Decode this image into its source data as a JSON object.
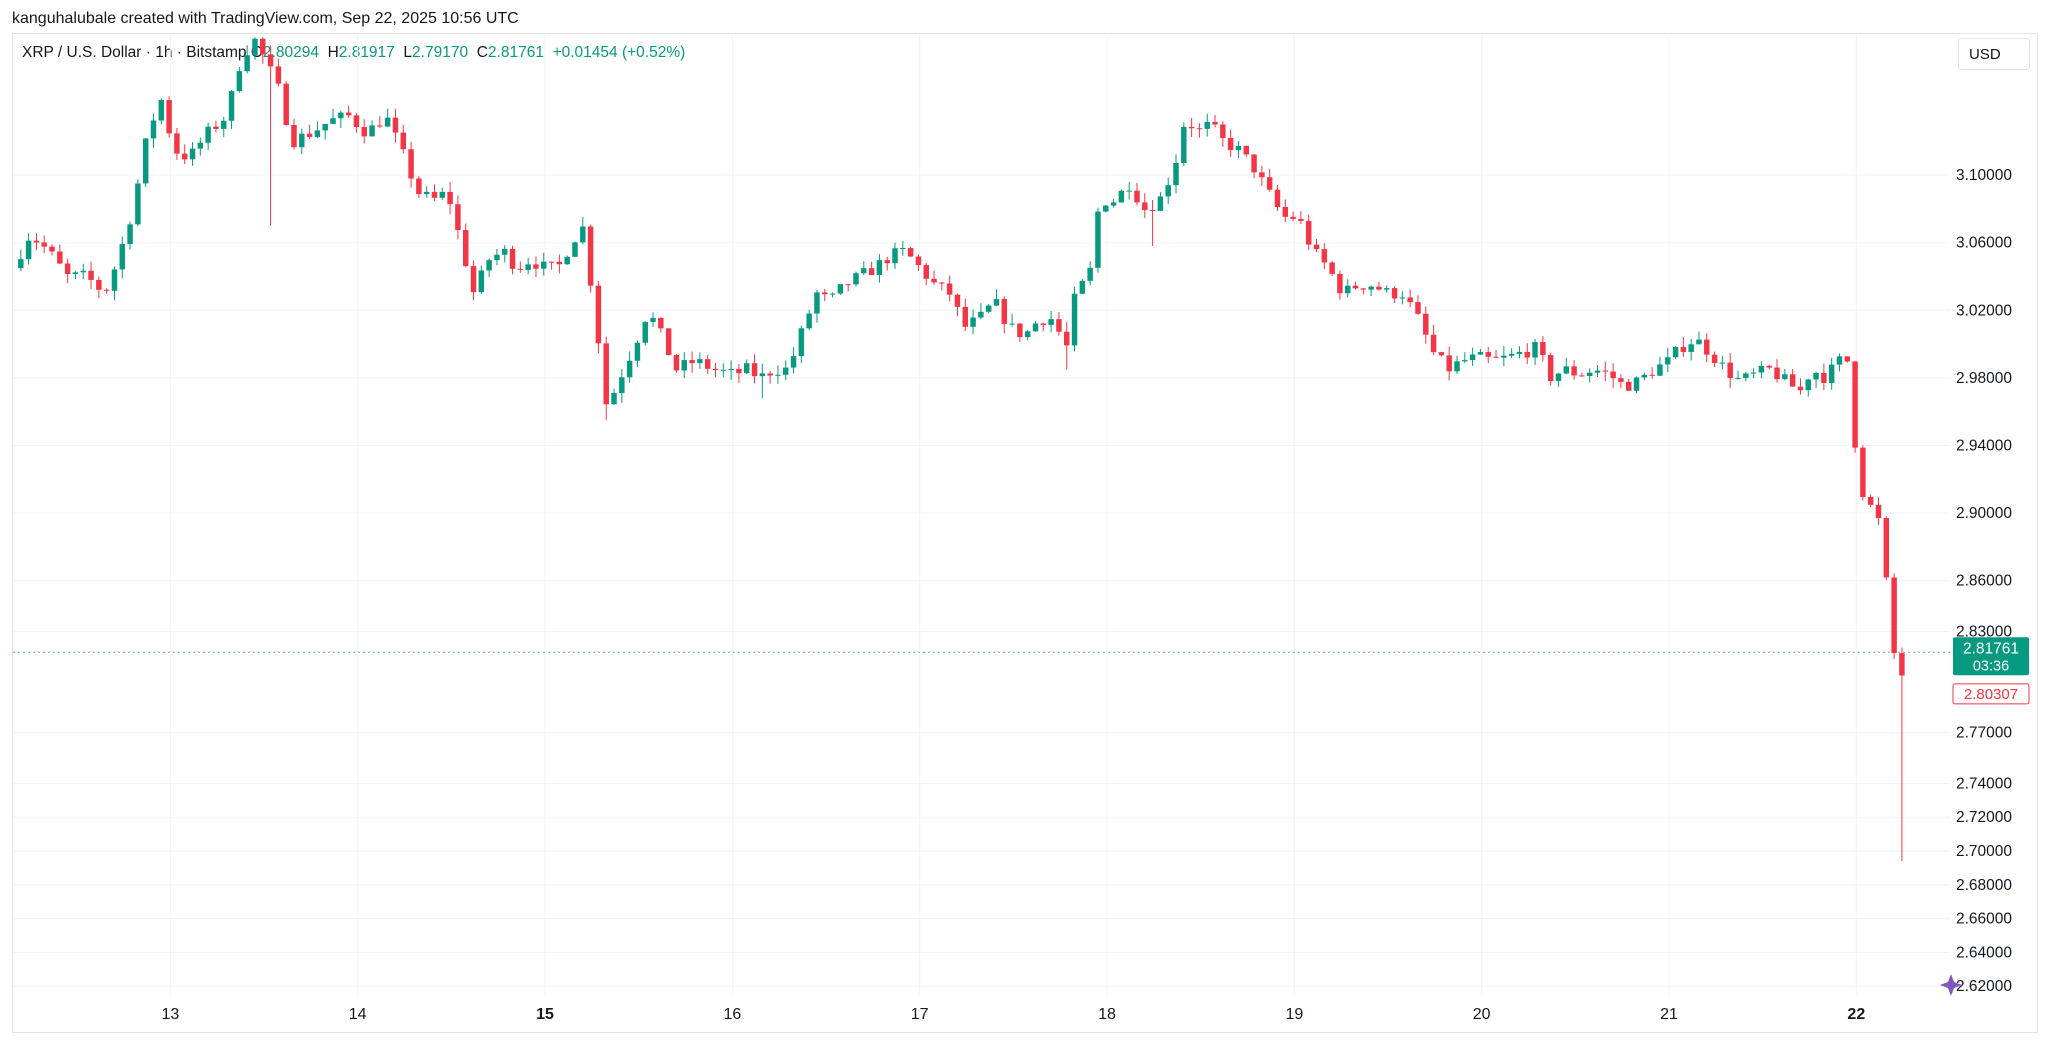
{
  "header": {
    "credit": "kanguhalubale created with TradingView.com, Sep 22, 2025 10:56 UTC"
  },
  "legend": {
    "symbol": "XRP / U.S. Dollar · 1h · Bitstamp",
    "open_label": "O",
    "open_value": "2.80294",
    "high_label": "H",
    "high_value": "2.81917",
    "low_label": "L",
    "low_value": "2.79170",
    "close_label": "C",
    "close_value": "2.81761",
    "change": "+0.01454 (+0.52%)"
  },
  "toolbar": {
    "currency": "USD"
  },
  "price_tags": {
    "last_price": "2.81761",
    "countdown": "03:36",
    "bid_price": "2.80307"
  },
  "colors": {
    "up": "#089981",
    "down": "#f23645",
    "grid": "#f0f3fa",
    "last_price_line": "#089981"
  },
  "chart_data": {
    "type": "candlestick",
    "symbol": "XRP / U.S. Dollar",
    "interval": "1h",
    "exchange": "Bitstamp",
    "yaxis": {
      "ticks": [
        "2.62000",
        "2.64000",
        "2.66000",
        "2.68000",
        "2.70000",
        "2.72000",
        "2.74000",
        "2.77000",
        "2.83000",
        "2.86000",
        "2.90000",
        "2.94000",
        "2.98000",
        "3.02000",
        "3.06000",
        "3.10000"
      ],
      "range": [
        2.6148,
        3.1835
      ]
    },
    "xaxis": {
      "start_day": 12.16,
      "end_day": 22.5,
      "ticks": [
        {
          "label": "13",
          "day": 13,
          "bold": false
        },
        {
          "label": "14",
          "day": 14,
          "bold": false
        },
        {
          "label": "15",
          "day": 15,
          "bold": true
        },
        {
          "label": "16",
          "day": 16,
          "bold": false
        },
        {
          "label": "17",
          "day": 17,
          "bold": false
        },
        {
          "label": "18",
          "day": 18,
          "bold": false
        },
        {
          "label": "19",
          "day": 19,
          "bold": false
        },
        {
          "label": "20",
          "day": 20,
          "bold": false
        },
        {
          "label": "21",
          "day": 21,
          "bold": false
        },
        {
          "label": "22",
          "day": 22,
          "bold": true
        }
      ]
    },
    "last_price": 2.81761,
    "bid_price": 2.80307,
    "close_path": [
      {
        "day": 12.16,
        "close": 3.045
      },
      {
        "day": 12.25,
        "close": 3.065
      },
      {
        "day": 12.35,
        "close": 3.055
      },
      {
        "day": 12.45,
        "close": 3.04
      },
      {
        "day": 12.55,
        "close": 3.04
      },
      {
        "day": 12.65,
        "close": 3.03
      },
      {
        "day": 12.72,
        "close": 3.05
      },
      {
        "day": 12.8,
        "close": 3.08
      },
      {
        "day": 12.88,
        "close": 3.125
      },
      {
        "day": 12.95,
        "close": 3.145
      },
      {
        "day": 13.02,
        "close": 3.115
      },
      {
        "day": 13.1,
        "close": 3.11
      },
      {
        "day": 13.2,
        "close": 3.125
      },
      {
        "day": 13.3,
        "close": 3.135
      },
      {
        "day": 13.38,
        "close": 3.17
      },
      {
        "day": 13.45,
        "close": 3.18
      },
      {
        "day": 13.52,
        "close": 3.165
      },
      {
        "day": 13.58,
        "close": 3.15
      },
      {
        "day": 13.65,
        "close": 3.12
      },
      {
        "day": 13.75,
        "close": 3.125
      },
      {
        "day": 13.85,
        "close": 3.132
      },
      {
        "day": 13.95,
        "close": 3.135
      },
      {
        "day": 14.05,
        "close": 3.125
      },
      {
        "day": 14.15,
        "close": 3.135
      },
      {
        "day": 14.25,
        "close": 3.11
      },
      {
        "day": 14.32,
        "close": 3.09
      },
      {
        "day": 14.4,
        "close": 3.085
      },
      {
        "day": 14.48,
        "close": 3.09
      },
      {
        "day": 14.55,
        "close": 3.06
      },
      {
        "day": 14.62,
        "close": 3.03
      },
      {
        "day": 14.7,
        "close": 3.05
      },
      {
        "day": 14.78,
        "close": 3.055
      },
      {
        "day": 14.85,
        "close": 3.045
      },
      {
        "day": 14.92,
        "close": 3.05
      },
      {
        "day": 15.0,
        "close": 3.045
      },
      {
        "day": 15.07,
        "close": 3.045
      },
      {
        "day": 15.14,
        "close": 3.06
      },
      {
        "day": 15.2,
        "close": 3.07
      },
      {
        "day": 15.26,
        "close": 3.025
      },
      {
        "day": 15.33,
        "close": 2.962
      },
      {
        "day": 15.4,
        "close": 2.98
      },
      {
        "day": 15.48,
        "close": 3.0
      },
      {
        "day": 15.55,
        "close": 3.02
      },
      {
        "day": 15.62,
        "close": 3.005
      },
      {
        "day": 15.7,
        "close": 2.985
      },
      {
        "day": 15.8,
        "close": 2.99
      },
      {
        "day": 15.9,
        "close": 2.985
      },
      {
        "day": 16.0,
        "close": 2.982
      },
      {
        "day": 16.08,
        "close": 2.985
      },
      {
        "day": 16.15,
        "close": 2.98
      },
      {
        "day": 16.22,
        "close": 2.985
      },
      {
        "day": 16.3,
        "close": 2.985
      },
      {
        "day": 16.38,
        "close": 3.01
      },
      {
        "day": 16.45,
        "close": 3.03
      },
      {
        "day": 16.52,
        "close": 3.025
      },
      {
        "day": 16.6,
        "close": 3.035
      },
      {
        "day": 16.68,
        "close": 3.04
      },
      {
        "day": 16.76,
        "close": 3.045
      },
      {
        "day": 16.84,
        "close": 3.052
      },
      {
        "day": 16.92,
        "close": 3.055
      },
      {
        "day": 17.0,
        "close": 3.045
      },
      {
        "day": 17.08,
        "close": 3.035
      },
      {
        "day": 17.16,
        "close": 3.03
      },
      {
        "day": 17.24,
        "close": 3.01
      },
      {
        "day": 17.32,
        "close": 3.015
      },
      {
        "day": 17.4,
        "close": 3.025
      },
      {
        "day": 17.48,
        "close": 3.01
      },
      {
        "day": 17.56,
        "close": 3.005
      },
      {
        "day": 17.64,
        "close": 3.015
      },
      {
        "day": 17.72,
        "close": 3.015
      },
      {
        "day": 17.78,
        "close": 2.995
      },
      {
        "day": 17.84,
        "close": 3.035
      },
      {
        "day": 17.9,
        "close": 3.035
      },
      {
        "day": 17.96,
        "close": 3.085
      },
      {
        "day": 18.04,
        "close": 3.085
      },
      {
        "day": 18.12,
        "close": 3.095
      },
      {
        "day": 18.2,
        "close": 3.08
      },
      {
        "day": 18.28,
        "close": 3.085
      },
      {
        "day": 18.36,
        "close": 3.105
      },
      {
        "day": 18.42,
        "close": 3.135
      },
      {
        "day": 18.48,
        "close": 3.125
      },
      {
        "day": 18.55,
        "close": 3.13
      },
      {
        "day": 18.62,
        "close": 3.12
      },
      {
        "day": 18.7,
        "close": 3.115
      },
      {
        "day": 18.78,
        "close": 3.105
      },
      {
        "day": 18.86,
        "close": 3.09
      },
      {
        "day": 18.94,
        "close": 3.075
      },
      {
        "day": 19.02,
        "close": 3.075
      },
      {
        "day": 19.1,
        "close": 3.055
      },
      {
        "day": 19.18,
        "close": 3.045
      },
      {
        "day": 19.26,
        "close": 3.03
      },
      {
        "day": 19.34,
        "close": 3.035
      },
      {
        "day": 19.42,
        "close": 3.035
      },
      {
        "day": 19.5,
        "close": 3.03
      },
      {
        "day": 19.58,
        "close": 3.03
      },
      {
        "day": 19.66,
        "close": 3.015
      },
      {
        "day": 19.74,
        "close": 2.995
      },
      {
        "day": 19.82,
        "close": 2.985
      },
      {
        "day": 19.9,
        "close": 2.99
      },
      {
        "day": 19.98,
        "close": 2.992
      },
      {
        "day": 20.06,
        "close": 2.99
      },
      {
        "day": 20.14,
        "close": 2.992
      },
      {
        "day": 20.22,
        "close": 2.995
      },
      {
        "day": 20.3,
        "close": 2.998
      },
      {
        "day": 20.36,
        "close": 2.98
      },
      {
        "day": 20.44,
        "close": 2.985
      },
      {
        "day": 20.52,
        "close": 2.982
      },
      {
        "day": 20.6,
        "close": 2.985
      },
      {
        "day": 20.68,
        "close": 2.982
      },
      {
        "day": 20.76,
        "close": 2.975
      },
      {
        "day": 20.84,
        "close": 2.978
      },
      {
        "day": 20.92,
        "close": 2.985
      },
      {
        "day": 21.0,
        "close": 2.99
      },
      {
        "day": 21.06,
        "close": 2.998
      },
      {
        "day": 21.14,
        "close": 3.003
      },
      {
        "day": 21.22,
        "close": 2.995
      },
      {
        "day": 21.3,
        "close": 2.985
      },
      {
        "day": 21.38,
        "close": 2.978
      },
      {
        "day": 21.46,
        "close": 2.982
      },
      {
        "day": 21.54,
        "close": 2.985
      },
      {
        "day": 21.62,
        "close": 2.978
      },
      {
        "day": 21.7,
        "close": 2.972
      },
      {
        "day": 21.76,
        "close": 2.985
      },
      {
        "day": 21.84,
        "close": 2.98
      },
      {
        "day": 21.9,
        "close": 2.99
      },
      {
        "day": 21.96,
        "close": 2.99
      },
      {
        "day": 22.01,
        "close": 2.918
      },
      {
        "day": 22.07,
        "close": 2.905
      },
      {
        "day": 22.12,
        "close": 2.895
      },
      {
        "day": 22.17,
        "close": 2.85
      },
      {
        "day": 22.21,
        "close": 2.808
      },
      {
        "day": 22.24,
        "close": 2.803
      },
      {
        "day": 22.27,
        "close": 2.8176
      }
    ],
    "notable_wicks": [
      {
        "day": 13.53,
        "low": 3.07
      },
      {
        "day": 15.34,
        "low": 2.955
      },
      {
        "day": 16.16,
        "low": 2.968
      },
      {
        "day": 17.78,
        "low": 2.985
      },
      {
        "day": 18.26,
        "low": 3.058
      },
      {
        "day": 22.23,
        "low": 2.694
      }
    ]
  }
}
